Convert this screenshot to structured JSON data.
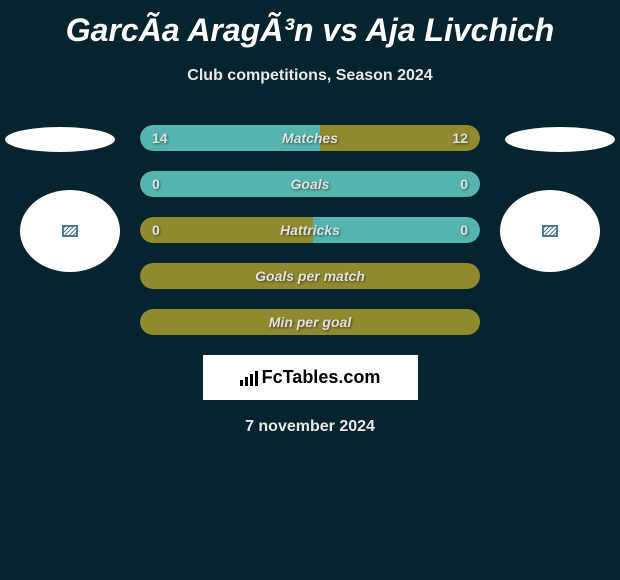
{
  "title": "GarcÃ­a AragÃ³n vs Aja Livchich",
  "subtitle": "Club competitions, Season 2024",
  "colors": {
    "background": "#06242f",
    "olive": "#908a2f",
    "teal": "#55b5ae",
    "text_light": "#e0e0e0",
    "white": "#ffffff"
  },
  "bars": [
    {
      "label": "Matches",
      "left_value": "14",
      "right_value": "12",
      "left_color": "#55b5ae",
      "right_color": "#908a2f",
      "left_pct": 53,
      "right_pct": 47
    },
    {
      "label": "Goals",
      "left_value": "0",
      "right_value": "0",
      "left_color": "#55b5ae",
      "right_color": "#55b5ae",
      "left_pct": 100,
      "right_pct": 0
    },
    {
      "label": "Hattricks",
      "left_value": "0",
      "right_value": "0",
      "left_color": "#908a2f",
      "right_color": "#55b5ae",
      "left_pct": 51,
      "right_pct": 49
    },
    {
      "label": "Goals per match",
      "left_value": "",
      "right_value": "",
      "left_color": "#908a2f",
      "right_color": "#908a2f",
      "left_pct": 100,
      "right_pct": 0
    },
    {
      "label": "Min per goal",
      "left_value": "",
      "right_value": "",
      "left_color": "#908a2f",
      "right_color": "#908a2f",
      "left_pct": 100,
      "right_pct": 0
    }
  ],
  "logo_text": "FcTables.com",
  "date": "7 november 2024"
}
